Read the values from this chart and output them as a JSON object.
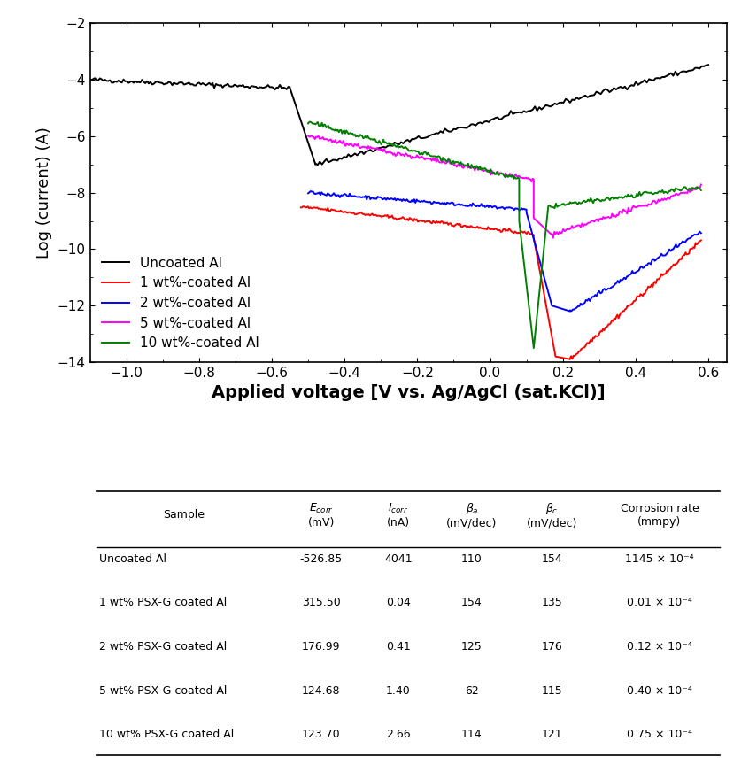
{
  "title": "",
  "xlabel": "Applied voltage [V vs. Ag/AgCl (sat.KCl)]",
  "ylabel": "Log (current) (A)",
  "xlim": [
    -1.1,
    0.65
  ],
  "ylim": [
    -14,
    -2
  ],
  "xticks": [
    -1.0,
    -0.8,
    -0.6,
    -0.4,
    -0.2,
    0.0,
    0.2,
    0.4,
    0.6
  ],
  "yticks": [
    -14,
    -12,
    -10,
    -8,
    -6,
    -4,
    -2
  ],
  "line_colors": [
    "black",
    "red",
    "blue",
    "magenta",
    "green"
  ],
  "legend_labels": [
    "Uncoated Al",
    "1 wt%-coated Al",
    "2 wt%-coated Al",
    "5 wt%-coated Al",
    "10 wt%-coated Al"
  ],
  "table_rows": [
    [
      "Uncoated Al",
      "-526.85",
      "4041",
      "110",
      "154",
      "1145 × 10⁻⁴"
    ],
    [
      "1 wt% PSX-G coated Al",
      "315.50",
      "0.04",
      "154",
      "135",
      "0.01 × 10⁻⁴"
    ],
    [
      "2 wt% PSX-G coated Al",
      "176.99",
      "0.41",
      "125",
      "176",
      "0.12 × 10⁻⁴"
    ],
    [
      "5 wt% PSX-G coated Al",
      "124.68",
      "1.40",
      "62",
      "115",
      "0.40 × 10⁻⁴"
    ],
    [
      "10 wt% PSX-G coated Al",
      "123.70",
      "2.66",
      "114",
      "121",
      "0.75 × 10⁻⁴"
    ]
  ]
}
